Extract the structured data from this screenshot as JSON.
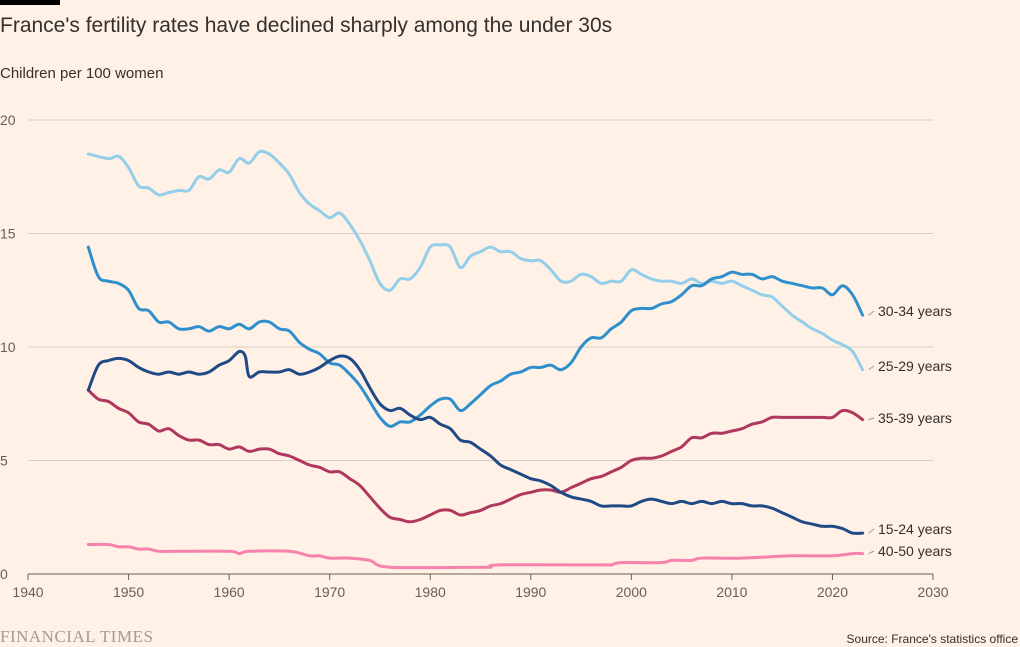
{
  "header": {
    "title": "France's fertility rates have declined sharply among the under 30s",
    "subtitle": "Children per 100 women"
  },
  "footer": {
    "logo": "FINANCIAL TIMES",
    "source": "Source: France's statistics office"
  },
  "chart_data": {
    "type": "line",
    "title": "France's fertility rates have declined sharply among the under 30s",
    "ylabel": "Children per 100 women",
    "xlim": [
      1940,
      2030
    ],
    "ylim": [
      0,
      20
    ],
    "xticks": [
      1940,
      1950,
      1960,
      1970,
      1980,
      1990,
      2000,
      2010,
      2020,
      2030
    ],
    "yticks": [
      0,
      5,
      10,
      15,
      20
    ],
    "grid": true,
    "series": [
      {
        "name": "25-29 years",
        "color": "#93CEEA",
        "x": [
          1946,
          1948,
          1949,
          1950,
          1951,
          1952,
          1953,
          1954,
          1955,
          1956,
          1957,
          1958,
          1959,
          1960,
          1961,
          1962,
          1963,
          1964,
          1965,
          1966,
          1967,
          1968,
          1969,
          1970,
          1971,
          1972,
          1973,
          1974,
          1975,
          1976,
          1977,
          1978,
          1979,
          1980,
          1981,
          1982,
          1983,
          1984,
          1985,
          1986,
          1987,
          1988,
          1989,
          1990,
          1991,
          1992,
          1993,
          1994,
          1995,
          1996,
          1997,
          1998,
          1999,
          2000,
          2001,
          2002,
          2003,
          2004,
          2005,
          2006,
          2007,
          2008,
          2009,
          2010,
          2011,
          2012,
          2013,
          2014,
          2015,
          2016,
          2017,
          2018,
          2019,
          2020,
          2021,
          2022,
          2023
        ],
        "y": [
          18.5,
          18.3,
          18.4,
          17.9,
          17.1,
          17.0,
          16.7,
          16.8,
          16.9,
          16.9,
          17.5,
          17.4,
          17.8,
          17.7,
          18.3,
          18.1,
          18.6,
          18.5,
          18.1,
          17.6,
          16.8,
          16.3,
          16.0,
          15.7,
          15.9,
          15.4,
          14.7,
          13.8,
          12.8,
          12.5,
          13.0,
          13.0,
          13.5,
          14.4,
          14.5,
          14.4,
          13.5,
          14.0,
          14.2,
          14.4,
          14.2,
          14.2,
          13.9,
          13.8,
          13.8,
          13.4,
          12.9,
          12.9,
          13.2,
          13.1,
          12.8,
          12.9,
          12.9,
          13.4,
          13.2,
          13.0,
          12.9,
          12.9,
          12.8,
          13.0,
          12.8,
          12.9,
          12.8,
          12.9,
          12.7,
          12.5,
          12.3,
          12.2,
          11.8,
          11.4,
          11.1,
          10.8,
          10.6,
          10.3,
          10.1,
          9.8,
          9.0
        ]
      },
      {
        "name": "30-34 years",
        "color": "#2E8FCC",
        "x": [
          1946,
          1947,
          1948,
          1949,
          1950,
          1951,
          1952,
          1953,
          1954,
          1955,
          1956,
          1957,
          1958,
          1959,
          1960,
          1961,
          1962,
          1963,
          1964,
          1965,
          1966,
          1967,
          1968,
          1969,
          1970,
          1971,
          1972,
          1973,
          1974,
          1975,
          1976,
          1977,
          1978,
          1979,
          1980,
          1981,
          1982,
          1983,
          1984,
          1985,
          1986,
          1987,
          1988,
          1989,
          1990,
          1991,
          1992,
          1993,
          1994,
          1995,
          1996,
          1997,
          1998,
          1999,
          2000,
          2001,
          2002,
          2003,
          2004,
          2005,
          2006,
          2007,
          2008,
          2009,
          2010,
          2011,
          2012,
          2013,
          2014,
          2015,
          2016,
          2017,
          2018,
          2019,
          2020,
          2021,
          2022,
          2023
        ],
        "y": [
          14.4,
          13.1,
          12.9,
          12.8,
          12.5,
          11.7,
          11.6,
          11.1,
          11.1,
          10.8,
          10.8,
          10.9,
          10.7,
          10.9,
          10.8,
          11.0,
          10.8,
          11.1,
          11.1,
          10.8,
          10.7,
          10.2,
          9.9,
          9.7,
          9.3,
          9.2,
          8.8,
          8.3,
          7.6,
          6.9,
          6.5,
          6.7,
          6.7,
          7.0,
          7.4,
          7.7,
          7.7,
          7.2,
          7.5,
          7.9,
          8.3,
          8.5,
          8.8,
          8.9,
          9.1,
          9.1,
          9.2,
          9.0,
          9.3,
          10.0,
          10.4,
          10.4,
          10.8,
          11.1,
          11.6,
          11.7,
          11.7,
          11.9,
          12.0,
          12.3,
          12.7,
          12.7,
          13.0,
          13.1,
          13.3,
          13.2,
          13.2,
          13.0,
          13.1,
          12.9,
          12.8,
          12.7,
          12.6,
          12.6,
          12.3,
          12.7,
          12.3,
          11.4
        ]
      },
      {
        "name": "35-39 years",
        "color": "#B0375E",
        "x": [
          1946,
          1947,
          1948,
          1949,
          1950,
          1951,
          1952,
          1953,
          1954,
          1955,
          1956,
          1957,
          1958,
          1959,
          1960,
          1961,
          1962,
          1963,
          1964,
          1965,
          1966,
          1967,
          1968,
          1969,
          1970,
          1971,
          1972,
          1973,
          1974,
          1975,
          1976,
          1977,
          1978,
          1979,
          1980,
          1981,
          1982,
          1983,
          1984,
          1985,
          1986,
          1987,
          1988,
          1989,
          1990,
          1991,
          1992,
          1993,
          1994,
          1995,
          1996,
          1997,
          1998,
          1999,
          2000,
          2001,
          2002,
          2003,
          2004,
          2005,
          2006,
          2007,
          2008,
          2009,
          2010,
          2011,
          2012,
          2013,
          2014,
          2015,
          2016,
          2017,
          2018,
          2019,
          2020,
          2021,
          2022,
          2023
        ],
        "y": [
          8.1,
          7.7,
          7.6,
          7.3,
          7.1,
          6.7,
          6.6,
          6.3,
          6.4,
          6.1,
          5.9,
          5.9,
          5.7,
          5.7,
          5.5,
          5.6,
          5.4,
          5.5,
          5.5,
          5.3,
          5.2,
          5.0,
          4.8,
          4.7,
          4.5,
          4.5,
          4.2,
          3.9,
          3.4,
          2.9,
          2.5,
          2.4,
          2.3,
          2.4,
          2.6,
          2.8,
          2.8,
          2.6,
          2.7,
          2.8,
          3.0,
          3.1,
          3.3,
          3.5,
          3.6,
          3.7,
          3.7,
          3.6,
          3.8,
          4.0,
          4.2,
          4.3,
          4.5,
          4.7,
          5.0,
          5.1,
          5.1,
          5.2,
          5.4,
          5.6,
          6.0,
          6.0,
          6.2,
          6.2,
          6.3,
          6.4,
          6.6,
          6.7,
          6.9,
          6.9,
          6.9,
          6.9,
          6.9,
          6.9,
          6.9,
          7.2,
          7.1,
          6.8
        ]
      },
      {
        "name": "15-24 years",
        "color": "#1F4A85",
        "x": [
          1946,
          1947,
          1948,
          1949,
          1950,
          1951,
          1952,
          1953,
          1954,
          1955,
          1956,
          1957,
          1958,
          1959,
          1960,
          1961,
          1961.6,
          1962,
          1963,
          1964,
          1965,
          1966,
          1967,
          1968,
          1969,
          1970,
          1971,
          1972,
          1973,
          1974,
          1975,
          1976,
          1977,
          1978,
          1979,
          1980,
          1981,
          1982,
          1983,
          1984,
          1985,
          1986,
          1987,
          1988,
          1989,
          1990,
          1991,
          1992,
          1993,
          1994,
          1995,
          1996,
          1997,
          1998,
          1999,
          2000,
          2001,
          2002,
          2003,
          2004,
          2005,
          2006,
          2007,
          2008,
          2009,
          2010,
          2011,
          2012,
          2013,
          2014,
          2015,
          2016,
          2017,
          2018,
          2019,
          2020,
          2021,
          2022,
          2023
        ],
        "y": [
          8.1,
          9.2,
          9.4,
          9.5,
          9.4,
          9.1,
          8.9,
          8.8,
          8.9,
          8.8,
          8.9,
          8.8,
          8.9,
          9.2,
          9.4,
          9.8,
          9.6,
          8.7,
          8.9,
          8.9,
          8.9,
          9.0,
          8.8,
          8.9,
          9.1,
          9.4,
          9.6,
          9.5,
          9.0,
          8.2,
          7.5,
          7.2,
          7.3,
          7.0,
          6.8,
          6.9,
          6.6,
          6.4,
          5.9,
          5.8,
          5.5,
          5.2,
          4.8,
          4.6,
          4.4,
          4.2,
          4.1,
          3.9,
          3.6,
          3.4,
          3.3,
          3.2,
          3.0,
          3.0,
          3.0,
          3.0,
          3.2,
          3.3,
          3.2,
          3.1,
          3.2,
          3.1,
          3.2,
          3.1,
          3.2,
          3.1,
          3.1,
          3.0,
          3.0,
          2.9,
          2.7,
          2.5,
          2.3,
          2.2,
          2.1,
          2.1,
          2.0,
          1.8,
          1.8
        ]
      },
      {
        "name": "40-50 years",
        "color": "#F583AE",
        "x": [
          1946,
          1948,
          1949,
          1950,
          1951,
          1952,
          1953,
          1955,
          1960,
          1961,
          1962,
          1966,
          1968,
          1969,
          1970,
          1972,
          1974,
          1976,
          1985,
          1986,
          1987,
          1997,
          1998,
          1999,
          2003,
          2004,
          2006,
          2007,
          2011,
          2016,
          2020,
          2022,
          2023
        ],
        "y": [
          1.3,
          1.3,
          1.2,
          1.2,
          1.1,
          1.1,
          1.0,
          1.0,
          1.0,
          0.9,
          1.0,
          1.0,
          0.8,
          0.8,
          0.7,
          0.7,
          0.6,
          0.3,
          0.3,
          0.3,
          0.4,
          0.4,
          0.4,
          0.5,
          0.5,
          0.6,
          0.6,
          0.7,
          0.7,
          0.8,
          0.8,
          0.9,
          0.9
        ]
      }
    ],
    "labels": [
      {
        "series": "30-34 years",
        "text": "30-34 years",
        "y": 11.4
      },
      {
        "series": "25-29 years",
        "text": "25-29 years",
        "y": 9.0
      },
      {
        "series": "35-39 years",
        "text": "35-39 years",
        "y": 6.8
      },
      {
        "series": "15-24 years",
        "text": "15-24 years",
        "y": 1.8
      },
      {
        "series": "40-50 years",
        "text": "40-50 years",
        "y": 0.9
      }
    ]
  }
}
